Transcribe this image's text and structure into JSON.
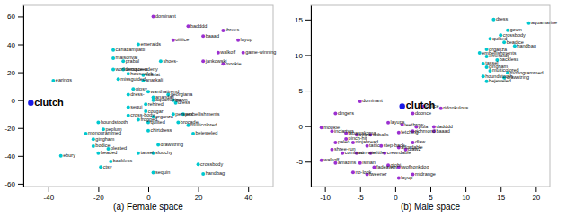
{
  "chart_data": [
    {
      "type": "scatter",
      "xlabel": "(a) Female space",
      "grid": false,
      "xlim": [
        -50,
        50
      ],
      "ylim": [
        -62,
        68
      ],
      "xticks": [
        -40,
        -20,
        0,
        20,
        40
      ],
      "yticks": [
        -60,
        -40,
        -20,
        0,
        20,
        40,
        60
      ],
      "series": [
        {
          "x": [
            -47,
            -38,
            -35,
            -25,
            -22,
            -22,
            -20,
            -19,
            -20,
            -18,
            -16,
            -15,
            -14,
            -14,
            -14,
            -12,
            -10,
            -10,
            -8,
            -8,
            -8,
            -8,
            -6,
            -4,
            -4,
            -4,
            -2,
            -2,
            0,
            2,
            -1,
            -1,
            0,
            0,
            2,
            2,
            2,
            2,
            4,
            5,
            8,
            10,
            11,
            10,
            12,
            16,
            14,
            18,
            20,
            22
          ],
          "values": [
            -2,
            14,
            -40,
            -24,
            -28,
            -33,
            -38,
            -48,
            -16,
            -21,
            -35,
            -44,
            22,
            30,
            36,
            15,
            22,
            28,
            19,
            4,
            -5,
            -11,
            8,
            40,
            -14,
            -38,
            18,
            14,
            6,
            0,
            -8,
            -3,
            -16,
            -22,
            -38,
            -52,
            2,
            -12,
            -32,
            28,
            4,
            0,
            -2,
            -10,
            -16,
            -18,
            -10,
            -24,
            -46,
            -53
          ],
          "labels": [
            "clutch",
            "earings",
            "ebury",
            "monogrammed",
            "gingham",
            "bodice",
            "beaded",
            "ctsy",
            "houndstooth",
            "peplum",
            "pleated",
            "backless",
            "worldmcqueen",
            "maisonval",
            "carlazampatti",
            "missguided",
            "versace-adeny",
            "prabal",
            "houseofcb",
            "dress-",
            "sequi",
            "cross-body",
            "gipsy",
            "emeralds",
            "frogged",
            "tassel",
            "scarlat",
            "anarkali",
            "wanthattrend",
            "aquamarine",
            "cougar",
            "rehired",
            "quilted",
            "chirtdress",
            "slouchy",
            "sequin",
            "anandali",
            "organza",
            "drawstring",
            "shoes-",
            "georgiana",
            "gown",
            "dress",
            "perspex",
            "brocade",
            "multicolored",
            "embellishments",
            "bejeweled",
            "crossbody",
            "handbag"
          ],
          "colors": [
            "#1a1ae6",
            "#00c8d0",
            "#00c8d0",
            "#00c8d0",
            "#00c8d0",
            "#00c8d0",
            "#00c8d0",
            "#00c8d0",
            "#00c8d0",
            "#00c8d0",
            "#00c8d0",
            "#00c8d0",
            "#00c8d0",
            "#00c8d0",
            "#00c8d0",
            "#00c8d0",
            "#00c8d0",
            "#00c8d0",
            "#00c8d0",
            "#00c8d0",
            "#00c8d0",
            "#00c8d0",
            "#00c8d0",
            "#00c8d0",
            "#00c8d0",
            "#00c8d0",
            "#00c8d0",
            "#00c8d0",
            "#00c8d0",
            "#00c8d0",
            "#00c8d0",
            "#00c8d0",
            "#00c8d0",
            "#00c8d0",
            "#00c8d0",
            "#00c8d0",
            "#00c8d0",
            "#00c8d0",
            "#00c8d0",
            "#00c8d0",
            "#00c8d0",
            "#00c8d0",
            "#00c8d0",
            "#00c8d0",
            "#00c8d0",
            "#00c8d0",
            "#00c8d0",
            "#00c8d0",
            "#00c8d0",
            "#00c8d0"
          ]
        },
        {
          "x": [
            2,
            16,
            22,
            30,
            10,
            36,
            28,
            38,
            22,
            30
          ],
          "values": [
            60,
            53,
            46,
            50,
            43,
            43,
            34,
            34,
            28,
            26
          ],
          "labels": [
            "dominant",
            "badddd",
            "baaad",
            "threes",
            "oiiiiice",
            "layup",
            "walkoff",
            "game-winning",
            "jankowski",
            "mookie"
          ],
          "color": "#9b30d0"
        }
      ]
    },
    {
      "type": "scatter",
      "xlabel": "(b) Male space",
      "grid": false,
      "xlim": [
        -12,
        22
      ],
      "ylim": [
        -8.5,
        17
      ],
      "xticks": [
        -10,
        -5,
        0,
        5,
        10,
        15,
        20
      ],
      "yticks": [
        -5,
        0,
        5,
        10,
        15
      ],
      "series": [
        {
          "x": [
            14,
            19,
            16,
            15,
            13.5,
            15.5,
            17,
            13,
            12,
            13,
            14.5,
            12.5,
            13,
            13.5,
            16,
            12.5,
            15.5,
            13
          ],
          "values": [
            15,
            14.5,
            13.5,
            12.8,
            12.3,
            11.8,
            11.3,
            10.8,
            10.3,
            9.8,
            9.3,
            8.8,
            8.3,
            7.8,
            7.5,
            7.0,
            6.8,
            6.3
          ],
          "labels": [
            "dress",
            "aquamarine",
            "gown",
            "crossbody",
            "quilted",
            "beadice",
            "handbag",
            "organza",
            "embellishments",
            "emeralds",
            "backless",
            "tassel",
            "gingham",
            "multicolored",
            "monogrammed",
            "houndstooth",
            "drawstring",
            "bejeweled"
          ],
          "color": "#00c8d0"
        },
        {
          "x": [
            -5,
            1,
            4,
            6.5,
            -8.5,
            2.5,
            -1,
            1,
            3,
            5.5,
            -10.5,
            -9,
            -7,
            -5.5,
            -3.5,
            0.5,
            2.5,
            5.5,
            -7,
            -8.5,
            -6,
            -4,
            -2,
            0.5,
            2.5,
            -9,
            -7.5,
            -5.5,
            -3.5,
            -1.5,
            1.5,
            -10.5,
            -8.5,
            -5,
            -3,
            -1,
            0.5,
            -6,
            -4,
            2.5,
            0.5
          ],
          "values": [
            3.5,
            2.8,
            2.8,
            2.5,
            1.8,
            1.8,
            0.5,
            0.2,
            -0.1,
            -0.1,
            -0.2,
            -0.7,
            -1.0,
            -1.2,
            -1.2,
            -0.9,
            -0.7,
            -0.7,
            -1.8,
            -2.3,
            -2.3,
            -2.8,
            -2.8,
            -3.0,
            -2.3,
            -3.3,
            -3.8,
            -3.8,
            -3.8,
            -3.8,
            -3.3,
            -4.8,
            -5.2,
            -5.2,
            -5.8,
            -5.5,
            -5.8,
            -6.5,
            -6.8,
            -6.8,
            -7.3
          ],
          "labels": [
            "dominant",
            "clutch",
            "oiiiiice",
            "ridonkulous",
            "dingers",
            "doonce",
            "layups",
            "teethrow",
            "pula",
            "dadddd",
            "mookie",
            "inclartwo",
            "jabawakoma",
            "avara",
            "totballs",
            "fetching",
            "richmond",
            "baaad",
            "pinch-hit",
            "paleo",
            "ninjabread",
            "tattic",
            "step-back",
            "affordable",
            "dlaw",
            "shree-run",
            "comboro",
            "win-win",
            "elittle",
            "crewrdable",
            "dlaw2",
            "walkoff",
            "amazins",
            "lsman",
            "fadeaway",
            "globi",
            "twofhonkdog",
            "no-look",
            "tweener",
            "midrange",
            "layup"
          ],
          "colors": [
            "#9b30d0",
            "#1a1ae6",
            "#9b30d0",
            "#9b30d0",
            "#9b30d0",
            "#9b30d0",
            "#9b30d0",
            "#9b30d0",
            "#9b30d0",
            "#9b30d0",
            "#9b30d0",
            "#9b30d0",
            "#9b30d0",
            "#9b30d0",
            "#9b30d0",
            "#9b30d0",
            "#9b30d0",
            "#9b30d0",
            "#9b30d0",
            "#9b30d0",
            "#9b30d0",
            "#9b30d0",
            "#9b30d0",
            "#9b30d0",
            "#9b30d0",
            "#9b30d0",
            "#9b30d0",
            "#9b30d0",
            "#9b30d0",
            "#9b30d0",
            "#9b30d0",
            "#9b30d0",
            "#9b30d0",
            "#9b30d0",
            "#9b30d0",
            "#9b30d0",
            "#9b30d0",
            "#9b30d0",
            "#9b30d0",
            "#9b30d0",
            "#9b30d0"
          ]
        }
      ]
    }
  ]
}
